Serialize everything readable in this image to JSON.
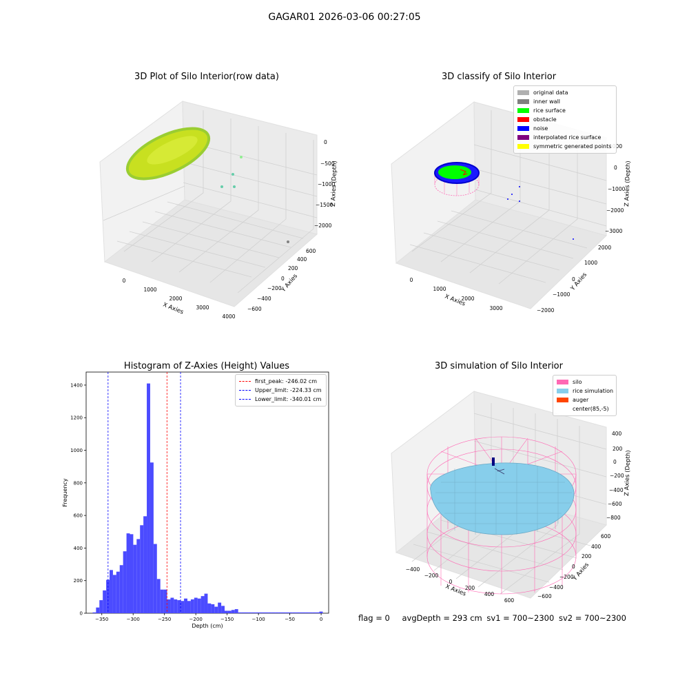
{
  "figure": {
    "suptitle": "GAGAR01 2026-03-06 00:27:05"
  },
  "panels": {
    "raw": {
      "title": "3D Plot of Silo Interior(row data)",
      "xlabel": "X Axies",
      "ylabel": "Y Axies",
      "zlabel": "Z Axies (Depth)",
      "xticks": [
        "0",
        "1000",
        "2000",
        "3000",
        "4000"
      ],
      "yticks": [
        "600",
        "400",
        "200",
        "0",
        "−200",
        "−400",
        "−600"
      ],
      "zticks": [
        "0",
        "−500",
        "−1000",
        "−1500",
        "−2000"
      ]
    },
    "classify": {
      "title": "3D classify of Silo Interior",
      "xlabel": "X Axies",
      "ylabel": "Y Axies",
      "zlabel": "Z Axies (Depth)",
      "xticks": [
        "0",
        "1000",
        "2000",
        "3000"
      ],
      "yticks": [
        "2000",
        "1000",
        "0",
        "−1000",
        "−2000"
      ],
      "zticks": [
        "1000",
        "0",
        "−1000",
        "−2000",
        "−3000"
      ],
      "legend": [
        {
          "label": "original data",
          "color": "#b0b0b0"
        },
        {
          "label": "inner wall",
          "color": "#808080"
        },
        {
          "label": "rice surface",
          "color": "#00ff00"
        },
        {
          "label": "obstacle",
          "color": "#ff0000"
        },
        {
          "label": "noise",
          "color": "#0000ff"
        },
        {
          "label": "interpolated rice surface",
          "color": "#800080"
        },
        {
          "label": "symmetric generated points",
          "color": "#ffff00"
        }
      ]
    },
    "histogram": {
      "title": "Histogram of Z-Axies (Height) Values",
      "legend": [
        {
          "label": "first_peak: -246.02 cm",
          "color": "#ff0000"
        },
        {
          "label": "Upper_limit: -224.33 cm",
          "color": "#0000ff"
        },
        {
          "label": "Lower_limit: -340.01 cm",
          "color": "#0000ff"
        }
      ]
    },
    "simulation": {
      "title": "3D simulation of Silo Interior",
      "xlabel": "X Axies",
      "ylabel": "Y Axies",
      "zlabel": "Z Axies (Depth)",
      "xticks": [
        "−400",
        "−200",
        "0",
        "200",
        "400",
        "600"
      ],
      "yticks": [
        "600",
        "400",
        "200",
        "0",
        "−200",
        "−400",
        "−600"
      ],
      "zticks": [
        "400",
        "200",
        "0",
        "−200",
        "−400",
        "−600",
        "−800"
      ],
      "legend": [
        {
          "label": "silo",
          "color": "#ff69b4"
        },
        {
          "label": "rice simulation",
          "color": "#87ceeb"
        },
        {
          "label": "auger",
          "color": "#ff4500"
        },
        {
          "label": "center(85,-5)",
          "color": ""
        }
      ]
    }
  },
  "status": {
    "flag": "flag = 0",
    "avg_depth": "avgDepth = 293 cm",
    "sv1": "sv1 = 700~2300",
    "sv2": "sv2 = 700~2300"
  },
  "colors": {
    "bar": "#4b4bff",
    "peak_line": "#ff0000",
    "limit_line": "#0000ff",
    "silo_wire": "#ff69b4",
    "rice": "#87ceeb"
  },
  "chart_data": {
    "type": "bar",
    "title": "Histogram of Z-Axies (Height) Values",
    "xlabel": "Depth (cm)",
    "ylabel": "Frequency",
    "xlim": [
      -375,
      12
    ],
    "ylim": [
      0,
      1480
    ],
    "xticks": [
      -350,
      -300,
      -250,
      -200,
      -150,
      -100,
      -50,
      0
    ],
    "yticks": [
      0,
      200,
      400,
      600,
      800,
      1000,
      1200,
      1400
    ],
    "bin_width": 5.4,
    "bin_starts": [
      -364.6,
      -359.2,
      -353.8,
      -348.4,
      -343.0,
      -337.6,
      -332.2,
      -326.8,
      -321.4,
      -316.0,
      -310.6,
      -305.2,
      -299.8,
      -294.4,
      -289.0,
      -283.6,
      -278.2,
      -272.8,
      -267.4,
      -262.0,
      -256.6,
      -251.2,
      -245.8,
      -240.4,
      -235.0,
      -229.6,
      -224.2,
      -218.8,
      -213.4,
      -208.0,
      -202.6,
      -197.2,
      -191.8,
      -186.4,
      -181.0,
      -175.6,
      -170.2,
      -164.8,
      -159.4,
      -154.0,
      -148.6,
      -143.2,
      -137.8,
      -132.4,
      -127.0,
      -121.6,
      -116.2,
      -110.8,
      -105.4,
      -100.0,
      -94.6,
      -89.2,
      -83.8,
      -78.4,
      -73.0,
      -67.6,
      -62.2,
      -56.8,
      -51.4,
      -46.0,
      -40.6,
      -35.2,
      -29.8,
      -24.4,
      -19.0,
      -13.6,
      -8.2,
      -2.8
    ],
    "values": [
      5,
      35,
      80,
      140,
      205,
      265,
      235,
      255,
      295,
      380,
      490,
      485,
      420,
      455,
      540,
      595,
      1410,
      925,
      425,
      210,
      145,
      145,
      85,
      95,
      85,
      80,
      75,
      90,
      75,
      85,
      95,
      90,
      105,
      120,
      60,
      55,
      40,
      65,
      45,
      15,
      15,
      20,
      25,
      5,
      5,
      5,
      5,
      5,
      5,
      5,
      5,
      5,
      5,
      5,
      5,
      5,
      5,
      5,
      5,
      5,
      5,
      5,
      5,
      5,
      5,
      5,
      5,
      10
    ],
    "first_peak": -246.02,
    "upper_limit": -224.33,
    "lower_limit": -340.01
  }
}
